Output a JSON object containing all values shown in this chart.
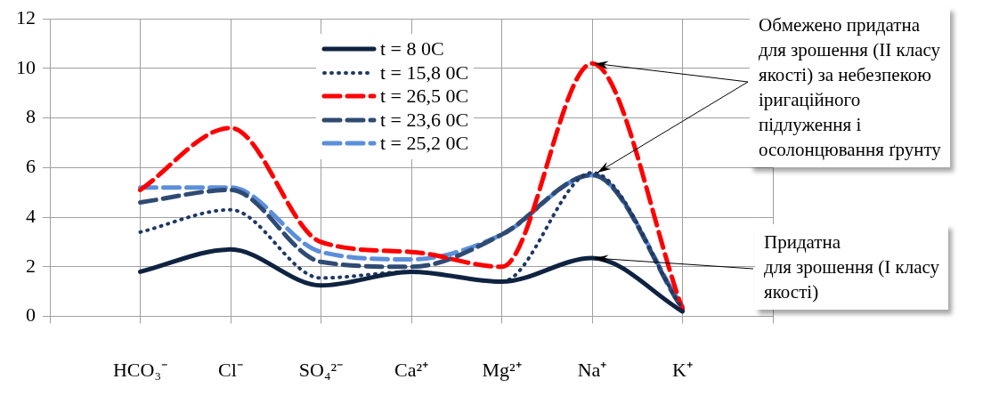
{
  "chart_data": {
    "type": "line",
    "categories": [
      null,
      "HCO₃⁻",
      "Cl⁻",
      "SO₄²⁻",
      "Ca²⁺",
      "Mg²⁺",
      "Na⁺",
      "K⁺",
      null
    ],
    "series": [
      {
        "name": "t = 8 0C",
        "color": "#0f2341",
        "line_style": "solid",
        "values": [
          null,
          1.8,
          2.7,
          1.25,
          1.8,
          1.4,
          2.35,
          0.2,
          null
        ]
      },
      {
        "name": "t = 15,8 0C",
        "color": "#1f3864",
        "line_style": "dotted",
        "values": [
          null,
          3.4,
          4.3,
          1.55,
          1.8,
          1.4,
          5.8,
          0.3,
          null
        ]
      },
      {
        "name": "t = 26,5 0C",
        "color": "#ff0000",
        "line_style": "dashed",
        "values": [
          null,
          5.1,
          7.6,
          3.0,
          2.6,
          2.0,
          10.2,
          0.3,
          null
        ]
      },
      {
        "name": "t = 23,6 0C",
        "color": "#2f4b73",
        "line_style": "dashed",
        "values": [
          null,
          4.6,
          5.1,
          2.2,
          2.0,
          3.3,
          5.7,
          0.3,
          null
        ]
      },
      {
        "name": "t = 25,2 0C",
        "color": "#5b8fdb",
        "line_style": "dashed",
        "values": [
          null,
          5.2,
          5.2,
          2.6,
          2.3,
          3.3,
          5.7,
          0.4,
          null
        ]
      }
    ],
    "ylim": [
      0,
      12
    ],
    "yticks": [
      0,
      2,
      4,
      6,
      8,
      10,
      12
    ],
    "grid": true,
    "legend": "top",
    "marker": "none",
    "annotations": [
      {
        "text": "Обмежено придатна\nдля зрошення (II класу\nякості) за небезпекою\nіригаційного\nпідлуження і\nосолонцювання ґрунту",
        "x": "Na⁺",
        "y": 10.2
      },
      {
        "text": "Придатна\nдля зрошення (I класу\nякості)",
        "x": "Na⁺",
        "y": 2.35
      }
    ]
  }
}
